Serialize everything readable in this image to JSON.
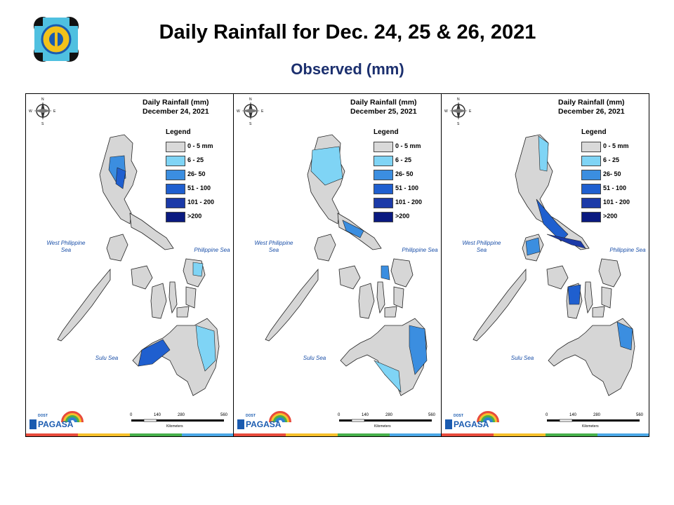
{
  "header": {
    "title": "Daily Rainfall for Dec. 24, 25 & 26, 2021",
    "subtitle": "Observed (mm)"
  },
  "colors": {
    "title_subtitle": "#1b2f6e",
    "legend": [
      "#d9d9d9",
      "#7fd4f5",
      "#3b8ee0",
      "#1f5fcf",
      "#1b3aa8",
      "#0a1a80"
    ]
  },
  "legend": {
    "title": "Legend",
    "items": [
      "0 - 5 mm",
      "6 - 25",
      "26- 50",
      "51 - 100",
      "101 - 200",
      ">200"
    ]
  },
  "seas": {
    "west": "West Philippine Sea",
    "east": "Philippine Sea",
    "sulu": "Sulu Sea"
  },
  "scale": {
    "ticks": [
      "0",
      "140",
      "280",
      "560"
    ],
    "unit": "Kilometers"
  },
  "compass": {
    "n": "N",
    "s": "S",
    "e": "E",
    "w": "W"
  },
  "brand": {
    "small": "DOST",
    "name": "PAGASA"
  },
  "panels": [
    {
      "title_line1": "Daily Rainfall (mm)",
      "title_line2": "December 24, 2021"
    },
    {
      "title_line1": "Daily Rainfall (mm)",
      "title_line2": "December 25, 2021"
    },
    {
      "title_line1": "Daily Rainfall (mm)",
      "title_line2": "December 26, 2021"
    }
  ]
}
